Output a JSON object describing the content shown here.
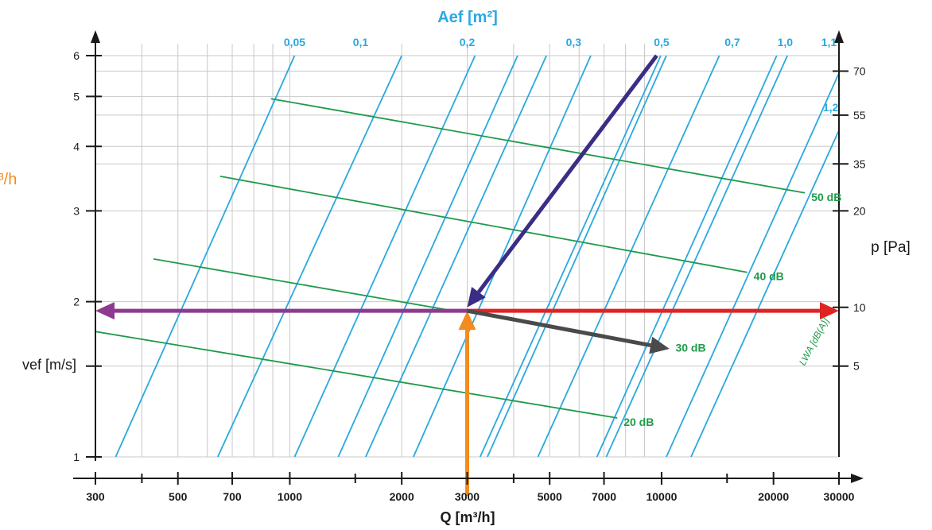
{
  "chart_data": {
    "type": "line",
    "title": "Aef [m²]",
    "xlabel": "Q [m³/h]",
    "ylabel_left": "vef [m/s]",
    "ylabel_right": "p [Pa]",
    "left_fragment": "³/h",
    "x_scale": "log",
    "xlim": [
      300,
      30000
    ],
    "ylim": [
      1,
      6
    ],
    "y_scale": "log",
    "x_ticks": [
      300,
      500,
      700,
      1000,
      2000,
      3000,
      5000,
      7000,
      10000,
      20000,
      30000
    ],
    "x_tick_labels": [
      "300",
      "500",
      "700",
      "1000",
      "2000",
      "3000",
      "5000",
      "7000",
      "10000",
      "20000",
      "30000"
    ],
    "x_minor_ticks": [
      400,
      1500,
      4000,
      15000
    ],
    "y_ticks_left": [
      1,
      2,
      3,
      4,
      5,
      6
    ],
    "y_tick_labels_left": [
      "1",
      "2",
      "3",
      "4",
      "5",
      "6"
    ],
    "y_ticks_right_at_velocity": [
      1.5,
      1.95,
      3.0,
      3.7,
      4.6,
      5.6
    ],
    "y_tick_labels_right": [
      "5",
      "10",
      "20",
      "35",
      "55",
      "70"
    ],
    "grid": true,
    "area_lines": [
      {
        "x_at_v1": 340,
        "x_at_v6": 1030,
        "label": "0,05",
        "label_x": 1030
      },
      {
        "x_at_v1": 640,
        "x_at_v6": 2000,
        "label": "0,1",
        "label_x": 1550
      },
      {
        "x_at_v1": 1030,
        "x_at_v6": 3150,
        "label": "0,2",
        "label_x": 3000
      },
      {
        "x_at_v1": 1350,
        "x_at_v6": 4100,
        "label": "",
        "label_x": 0
      },
      {
        "x_at_v1": 1600,
        "x_at_v6": 4900,
        "label": "0,3",
        "label_x": 5800
      },
      {
        "x_at_v1": 2150,
        "x_at_v6": 6450,
        "label": "",
        "label_x": 0
      },
      {
        "x_at_v1": 3250,
        "x_at_v6": 9950,
        "label": "0,5",
        "label_x": 10000
      },
      {
        "x_at_v1": 3400,
        "x_at_v6": 10300,
        "label": "",
        "label_x": 0
      },
      {
        "x_at_v1": 4650,
        "x_at_v6": 14300,
        "label": "0,7",
        "label_x": 15500
      },
      {
        "x_at_v1": 6700,
        "x_at_v6": 20400,
        "label": "1,0",
        "label_x": 21500
      },
      {
        "x_at_v1": 7100,
        "x_at_v6": 21800,
        "label": "",
        "label_x": 0
      },
      {
        "x_at_v1": 10300,
        "x_at_v6": 31500,
        "label": "1,1",
        "label_x": 28200
      },
      {
        "x_at_v1": 12000,
        "x_at_v6": 37000,
        "label": "",
        "label_x": 0
      }
    ],
    "area_label_extra": {
      "label": "1,2",
      "x": 28500,
      "v": 4.6
    },
    "sound_lines": [
      {
        "x1": 890,
        "v1": 4.95,
        "x2": 24300,
        "v2": 3.25,
        "label": "50 dB"
      },
      {
        "x1": 650,
        "v1": 3.5,
        "x2": 17000,
        "v2": 2.28,
        "label": "40 dB"
      },
      {
        "x1": 430,
        "v1": 2.42,
        "x2": 2750,
        "v2": 1.92,
        "label": ""
      },
      {
        "x1": 300,
        "v1": 1.75,
        "x2": 7600,
        "v2": 1.19,
        "label": "20 dB"
      }
    ],
    "sound_label_30": {
      "label": "30 dB",
      "x": 10900,
      "v": 1.6
    },
    "sound_axis_label": "LWA [dB(A)]",
    "operating_point": {
      "q": 3000,
      "v": 1.92
    },
    "arrows": [
      {
        "name": "flow-input-arrow",
        "color": "#f28c1f",
        "from": [
          3000,
          0.84
        ],
        "to": [
          3000,
          1.92
        ]
      },
      {
        "name": "area-line-arrow",
        "color": "#3b2d85",
        "from": [
          9700,
          6.0
        ],
        "to": [
          3000,
          1.95
        ]
      },
      {
        "name": "velocity-arrow",
        "color": "#8e3b8f",
        "from": [
          3000,
          1.92
        ],
        "to": [
          300,
          1.92
        ]
      },
      {
        "name": "pressure-arrow",
        "color": "#e02424",
        "from": [
          3000,
          1.92
        ],
        "to": [
          30000,
          1.92
        ]
      },
      {
        "name": "noise-arrow",
        "color": "#4a4a4a",
        "from": [
          3000,
          1.92
        ],
        "to": [
          10500,
          1.62
        ]
      }
    ]
  },
  "colors": {
    "area_line": "#2aa8e0",
    "sound_line": "#1e9a4a",
    "axis": "#1a1a1a",
    "grid": "#c8c8c8",
    "title": "#2aa8e0",
    "left_fragment": "#f28c1f"
  }
}
